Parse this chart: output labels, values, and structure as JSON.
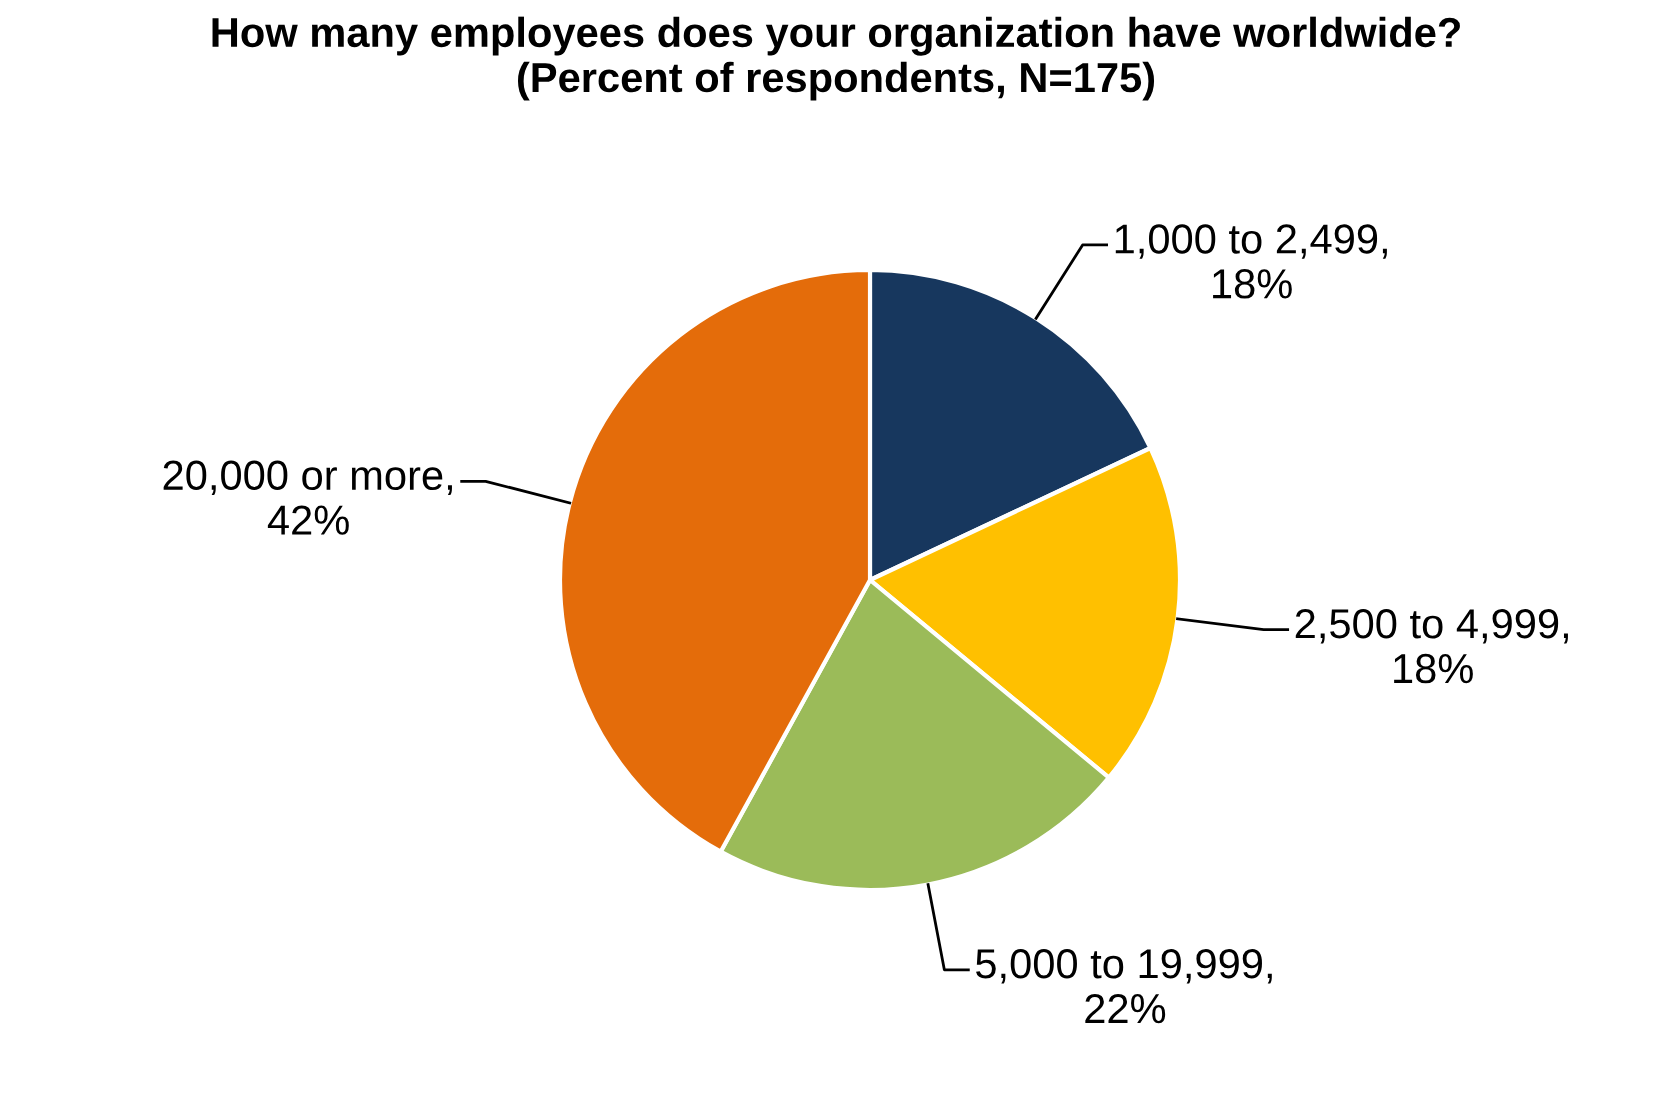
{
  "chart_data": {
    "type": "pie",
    "title": "How many employees does your organization have worldwide?\n(Percent of respondents, N=175)",
    "categories": [
      "1,000 to 2,499",
      "2,500 to 4,999",
      "5,000 to 19,999",
      "20,000 or more"
    ],
    "values": [
      18,
      18,
      22,
      42
    ],
    "value_labels": [
      ",\n18%",
      ",\n18%",
      ",\n22%",
      ",\n42%"
    ],
    "colors": [
      "#17375e",
      "#ffc000",
      "#9bbb59",
      "#e46c0a"
    ]
  }
}
